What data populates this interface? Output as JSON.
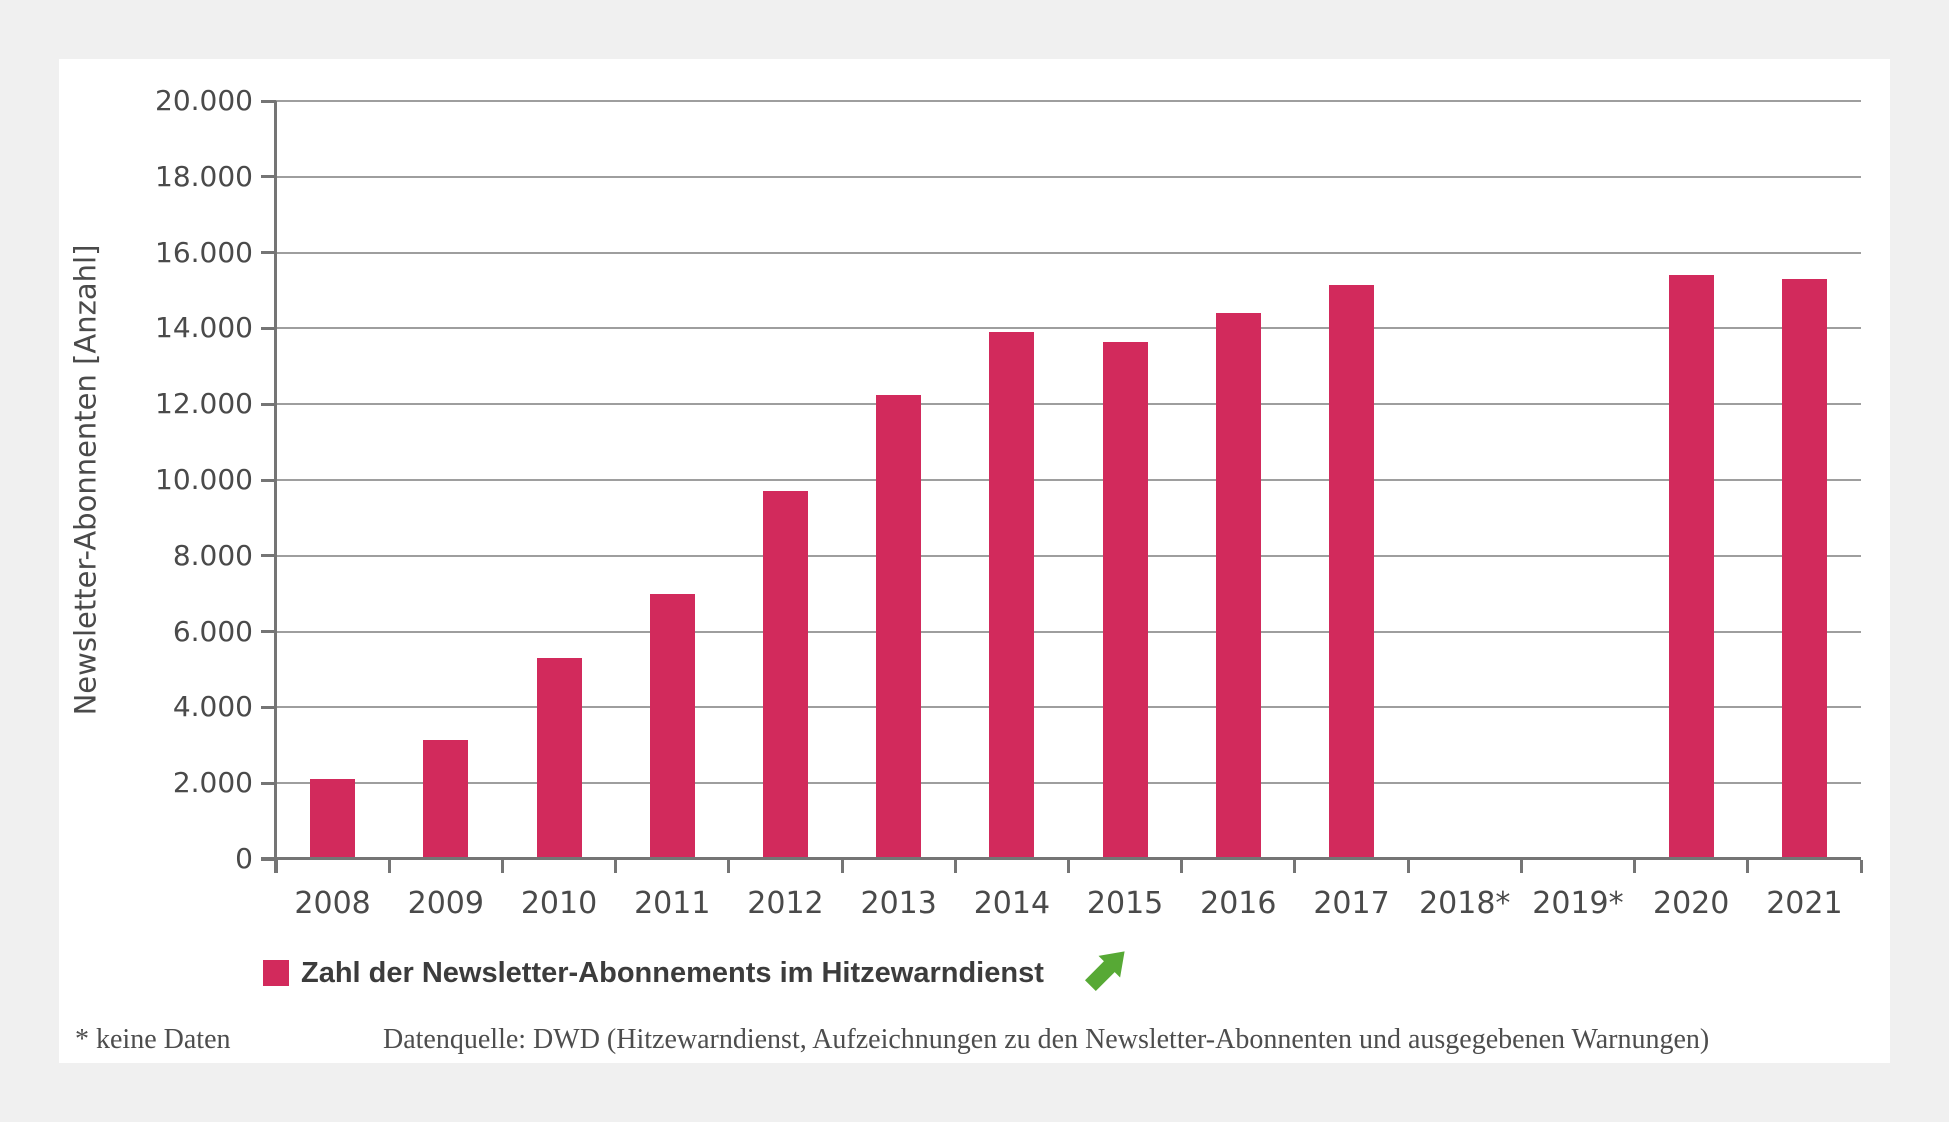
{
  "page": {
    "background_color": "#f0f0f0",
    "card_background_color": "#ffffff"
  },
  "chart_data": {
    "type": "bar",
    "title": "",
    "categories": [
      "2008",
      "2009",
      "2010",
      "2011",
      "2012",
      "2013",
      "2014",
      "2015",
      "2016",
      "2017",
      "2018*",
      "2019*",
      "2020",
      "2021"
    ],
    "values": [
      2100,
      3150,
      5300,
      7000,
      9700,
      12250,
      13900,
      13650,
      14400,
      15150,
      null,
      null,
      15400,
      15300
    ],
    "xlabel": "",
    "ylabel": "Newsletter-Abonnenten [Anzahl]",
    "ylim": [
      0,
      20000
    ],
    "ytick_values": [
      0,
      2000,
      4000,
      6000,
      8000,
      10000,
      12000,
      14000,
      16000,
      18000,
      20000
    ],
    "ytick_labels": [
      "0",
      "2.000",
      "4.000",
      "6.000",
      "8.000",
      "10.000",
      "12.000",
      "14.000",
      "16.000",
      "18.000",
      "20.000"
    ],
    "grid": true,
    "legend_position": "bottom",
    "bar_color": "#d22a5c",
    "gridline_color": "#9e9e9e",
    "axis_color": "#757575",
    "text_color": "#4a4a4a",
    "legend": {
      "label": "Zahl der Newsletter-Abonnements im Hitzewarndienst",
      "swatch_color": "#d22a5c",
      "trend_arrow": "up-right",
      "trend_arrow_color": "#57a935"
    }
  },
  "footer": {
    "note": "* keine Daten",
    "source": "Datenquelle: DWD (Hitzewarndienst, Aufzeichnungen zu den Newsletter-Abonnenten und ausgegebenen Warnungen)"
  }
}
